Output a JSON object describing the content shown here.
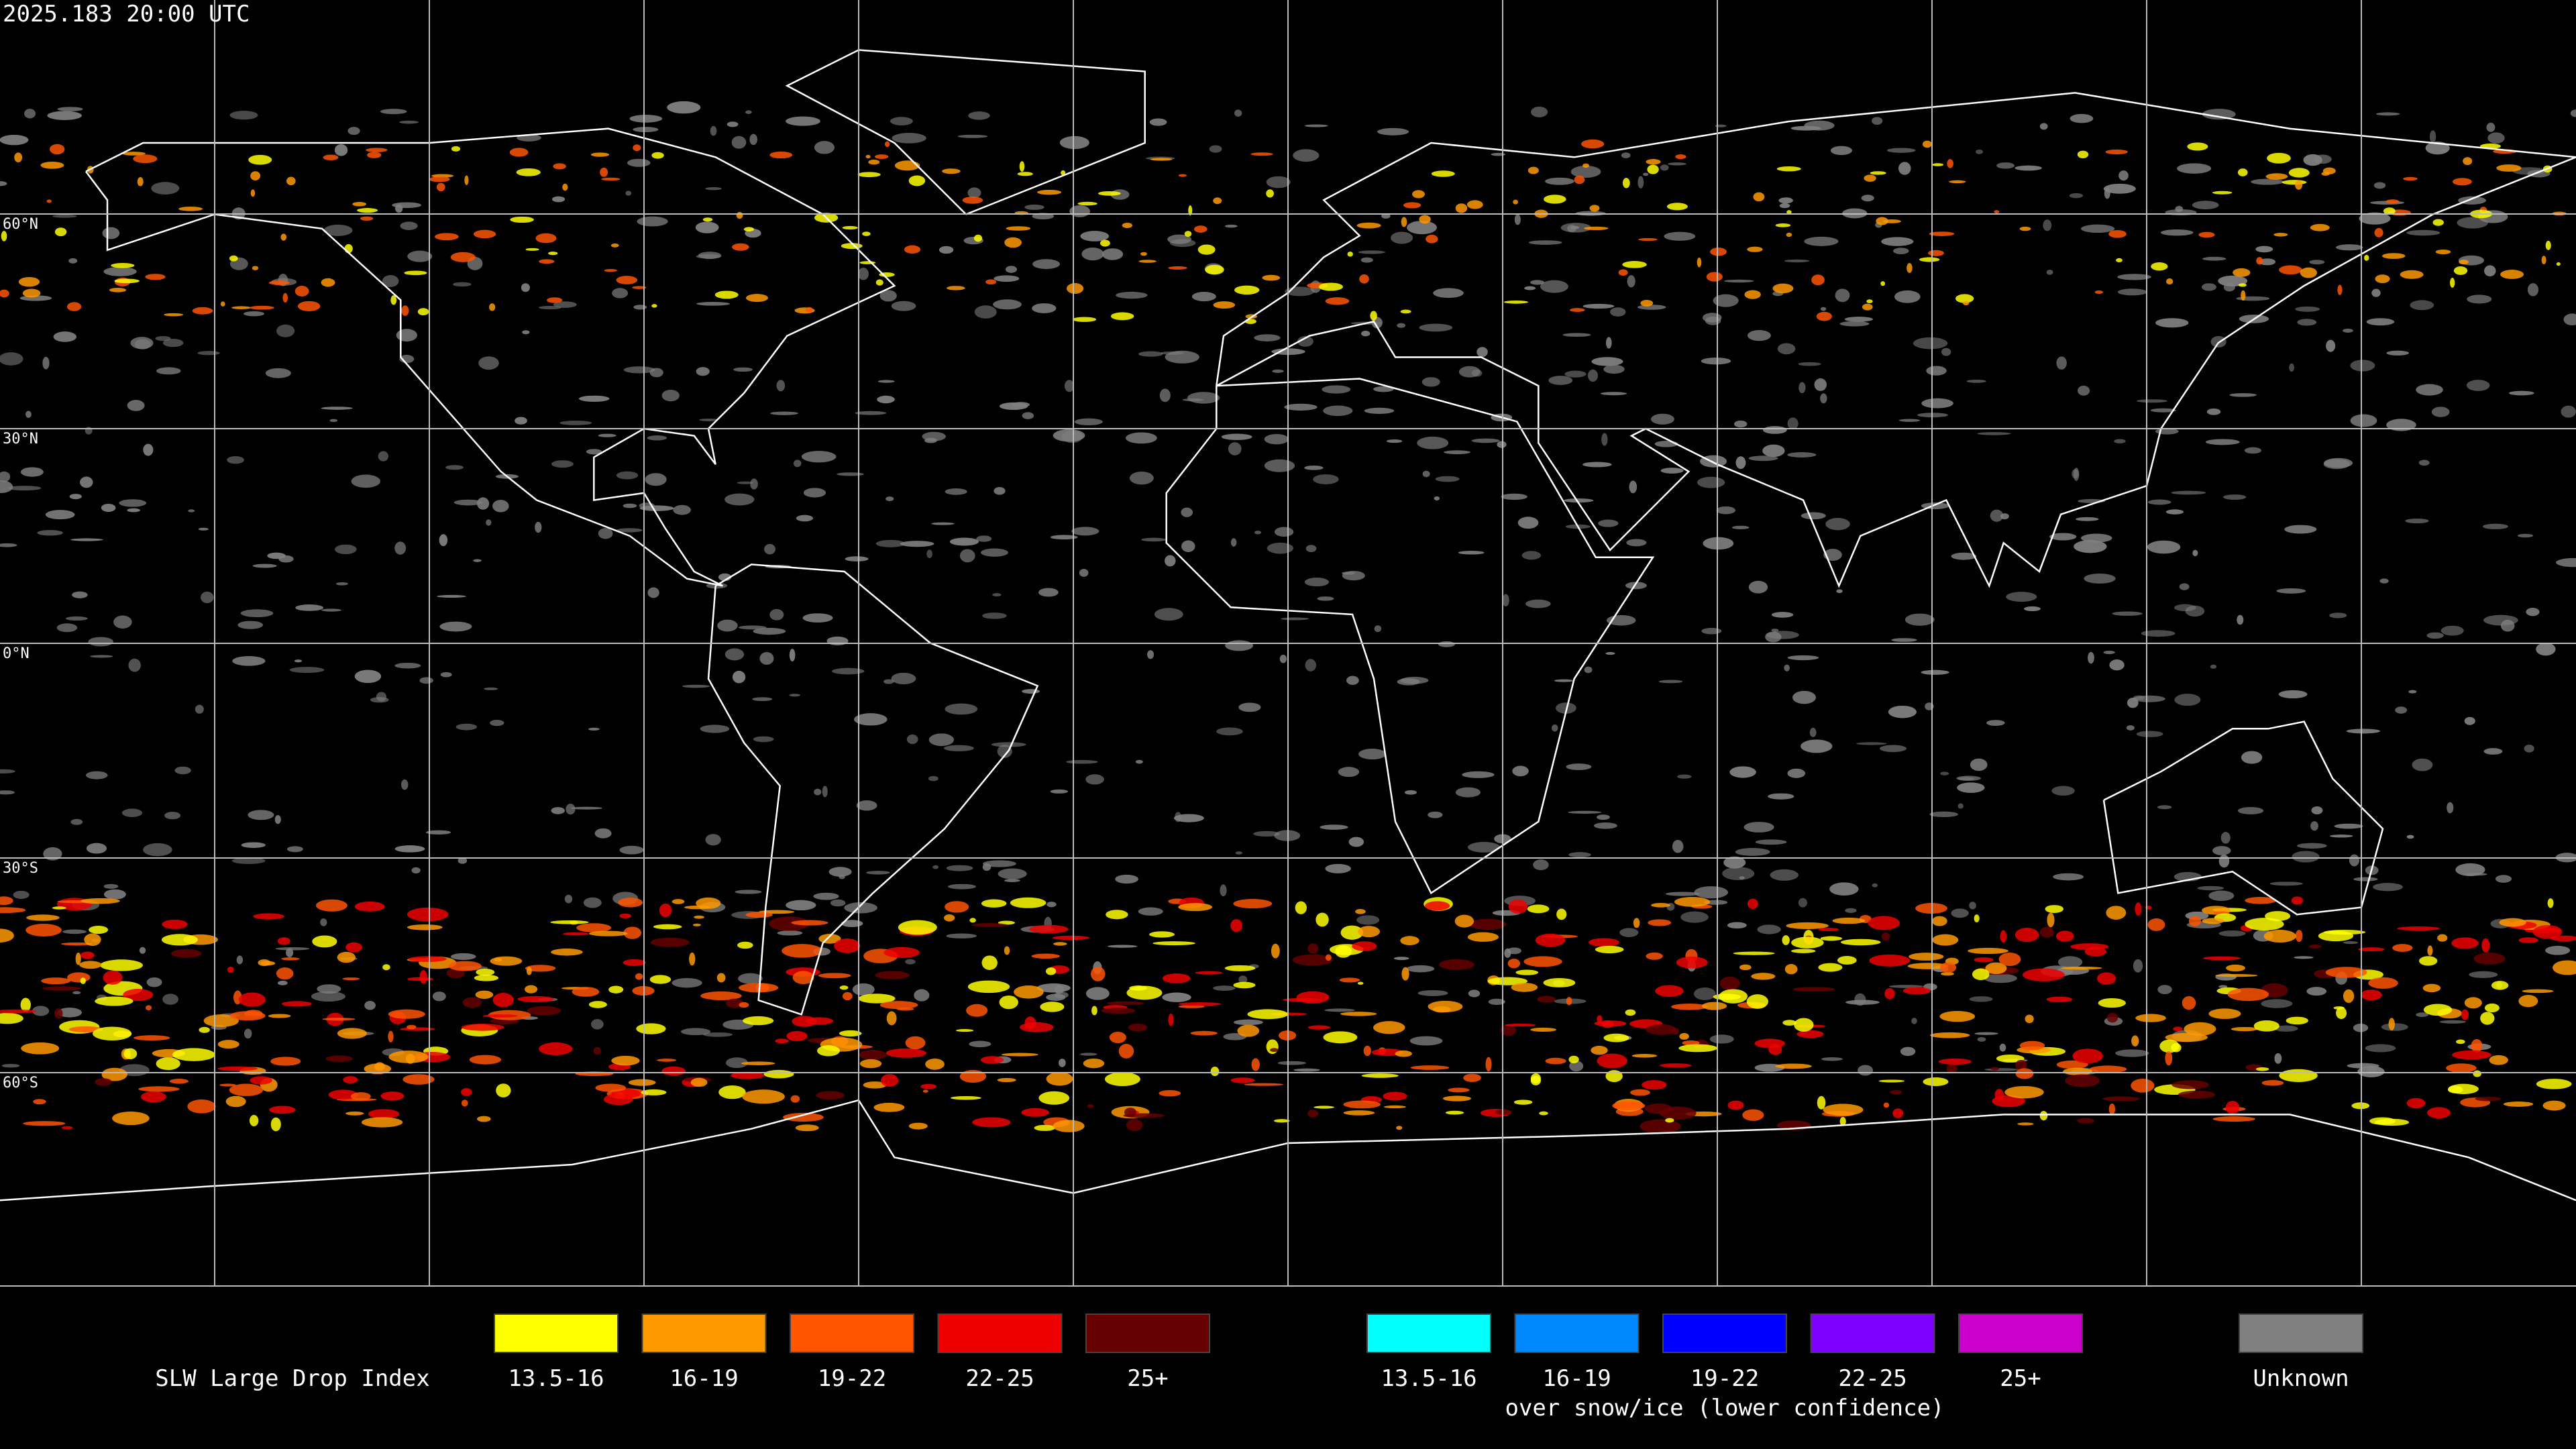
{
  "header": {
    "timestamp": "2025.183 20:00 UTC"
  },
  "map": {
    "latitude_labels": [
      "60°N",
      "30°N",
      "0°N",
      "30°S",
      "60°S"
    ]
  },
  "legend": {
    "title": "SLW Large Drop Index",
    "groups": [
      {
        "items": [
          {
            "label": "13.5-16",
            "color": "#ffff00"
          },
          {
            "label": "16-19",
            "color": "#ff9900"
          },
          {
            "label": "19-22",
            "color": "#ff5500"
          },
          {
            "label": "22-25",
            "color": "#ee0000"
          },
          {
            "label": "25+",
            "color": "#660000"
          }
        ]
      },
      {
        "items": [
          {
            "label": "13.5-16",
            "color": "#00ffff"
          },
          {
            "label": "16-19",
            "color": "#0088ff"
          },
          {
            "label": "19-22",
            "color": "#0000ff"
          },
          {
            "label": "22-25",
            "color": "#7f00ff"
          },
          {
            "label": "25+",
            "color": "#cc00cc"
          }
        ],
        "note": "over snow/ice (lower confidence)"
      }
    ],
    "unknown": {
      "label": "Unknown",
      "color": "#808080"
    }
  }
}
